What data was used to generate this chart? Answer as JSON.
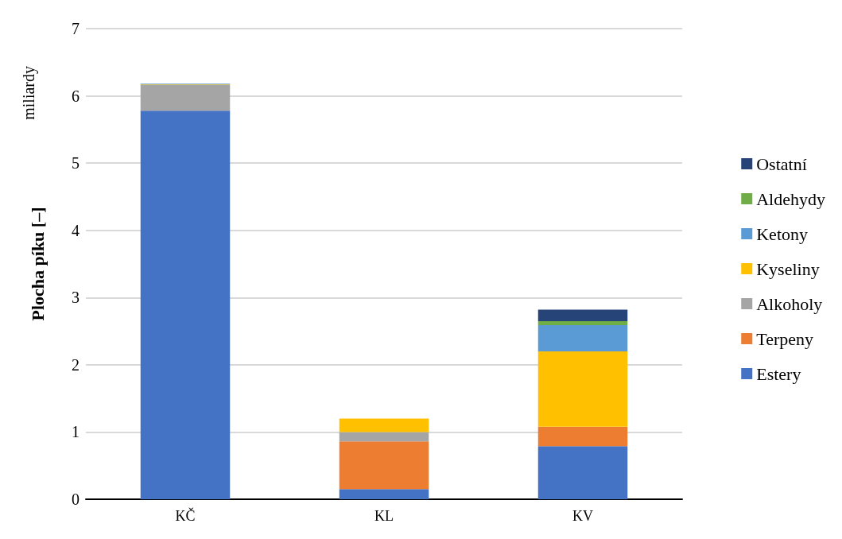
{
  "chart_data": {
    "type": "bar",
    "stacked": true,
    "ylabel": "Plocha píku [–]",
    "annotations": [
      "miliardy"
    ],
    "categories": [
      "KČ",
      "KL",
      "KV"
    ],
    "ylim": [
      0,
      7
    ],
    "yticks": [
      0,
      1,
      2,
      3,
      4,
      5,
      6,
      7
    ],
    "grid": "y",
    "legend": "right",
    "series": [
      {
        "name": "Estery",
        "color": "#4472c4",
        "values": [
          5.78,
          0.15,
          0.79
        ]
      },
      {
        "name": "Terpeny",
        "color": "#ed7d31",
        "values": [
          0,
          0.71,
          0.29
        ]
      },
      {
        "name": "Alkoholy",
        "color": "#a5a5a5",
        "values": [
          0.38,
          0.14,
          null
        ]
      },
      {
        "name": "Kyseliny",
        "color": "#ffc000",
        "values": [
          0.01,
          0.2,
          1.12
        ]
      },
      {
        "name": "Ketony",
        "color": "#5b9bd5",
        "values": [
          0.01,
          null,
          0.39
        ]
      },
      {
        "name": "Aldehydy",
        "color": "#70ad47",
        "values": [
          null,
          null,
          0.06
        ]
      },
      {
        "name": "Ostatní",
        "color": "#264478",
        "values": [
          null,
          null,
          0.17
        ]
      }
    ]
  }
}
